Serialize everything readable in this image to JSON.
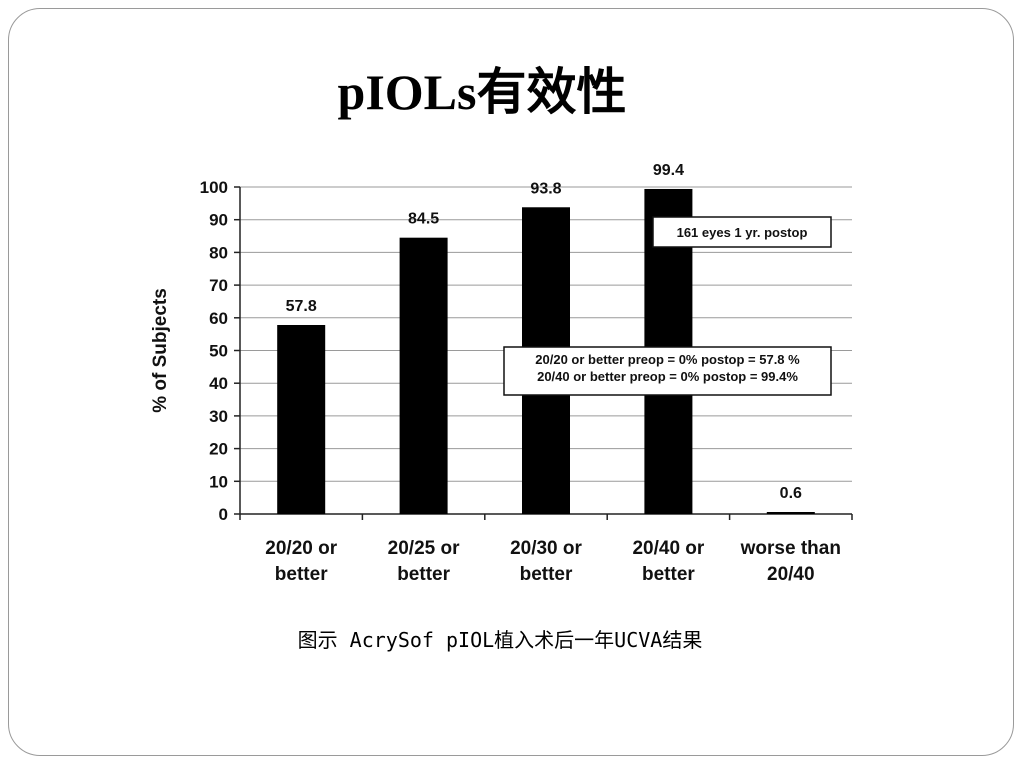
{
  "slide": {
    "title": "pIOLs有效性",
    "caption": "图示 AcrySof pIOL植入术后一年UCVA结果"
  },
  "chart_data": {
    "type": "bar",
    "categories": [
      [
        "20/20 or",
        "better"
      ],
      [
        "20/25 or",
        "better"
      ],
      [
        "20/30 or",
        "better"
      ],
      [
        "20/40 or",
        "better"
      ],
      [
        "worse than",
        "20/40"
      ]
    ],
    "values": [
      57.8,
      84.5,
      93.8,
      99.4,
      0.6
    ],
    "data_labels": [
      "57.8",
      "84.5",
      "93.8",
      "99.4",
      "0.6"
    ],
    "ylabel": "% of Subjects",
    "ylim": [
      0,
      100
    ],
    "yticks": [
      0,
      10,
      20,
      30,
      40,
      50,
      60,
      70,
      80,
      90,
      100
    ],
    "grid": true,
    "bar_color": "#000000",
    "annotations": [
      {
        "lines": [
          "161 eyes 1 yr. postop"
        ]
      },
      {
        "lines": [
          "20/20 or better preop = 0% postop = 57.8 %",
          "20/40 or better preop = 0% postop = 99.4%"
        ]
      }
    ]
  }
}
